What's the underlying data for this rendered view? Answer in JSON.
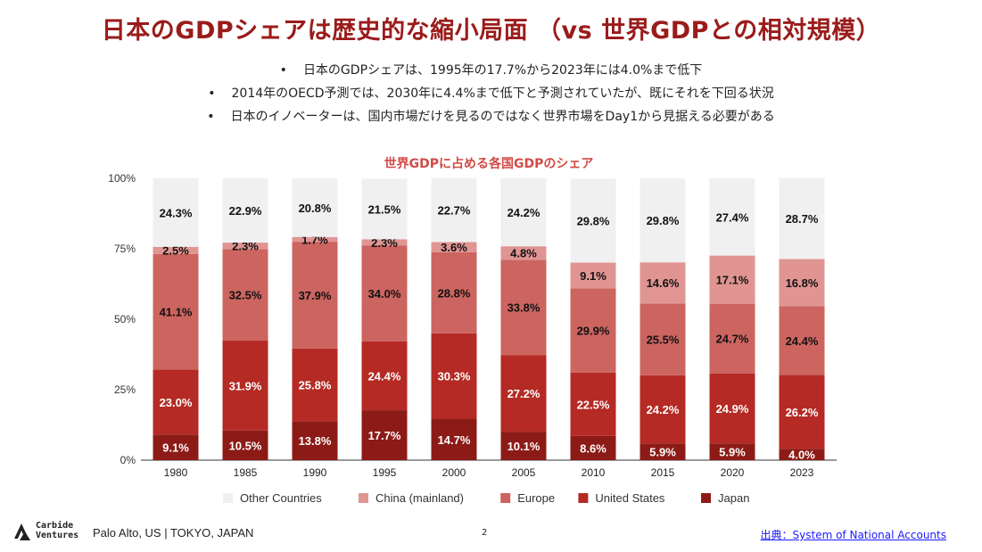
{
  "slide": {
    "title": "日本のGDPシェアは歴史的な縮小局面 （vs 世界GDPとの相対規模）",
    "bullets": [
      "日本のGDPシェアは、1995年の17.7%から2023年には4.0%まで低下",
      "2014年のOECD予測では、2030年に4.4%まで低下と予測されていたが、既にそれを下回る状況",
      "日本のイノベーターは、国内市場だけを見るのではなく世界市場をDay1から見据える必要がある"
    ],
    "bullet_marker": "•"
  },
  "footer": {
    "logo_line1": "Carbide",
    "logo_line2": "Ventures",
    "location": "Palo Alto, US | TOKYO, JAPAN",
    "page_number": "2",
    "source": "出典：System of National Accounts"
  },
  "chart_data": {
    "type": "bar",
    "stacked": true,
    "title": "世界GDPに占める各国GDPのシェア",
    "categories": [
      "1980",
      "1985",
      "1990",
      "1995",
      "2000",
      "2005",
      "2010",
      "2015",
      "2020",
      "2023"
    ],
    "yticks": [
      "0%",
      "25%",
      "50%",
      "75%",
      "100%"
    ],
    "ylim": [
      0,
      100
    ],
    "grid": false,
    "legend_position": "bottom",
    "series": [
      {
        "name": "Japan",
        "color": "#8c1b17",
        "label_color": "#ffffff",
        "values": [
          9.1,
          10.5,
          13.8,
          17.7,
          14.7,
          10.1,
          8.6,
          5.9,
          5.9,
          4.0
        ]
      },
      {
        "name": "United States",
        "color": "#b52a24",
        "label_color": "#ffffff",
        "values": [
          23.0,
          31.9,
          25.8,
          24.4,
          30.3,
          27.2,
          22.5,
          24.2,
          24.9,
          26.2
        ]
      },
      {
        "name": "Europe",
        "color": "#cc6460",
        "label_color": "#111111",
        "values": [
          41.1,
          32.5,
          37.9,
          34.0,
          28.8,
          33.8,
          29.9,
          25.5,
          24.7,
          24.4
        ]
      },
      {
        "name": "China (mainland)",
        "color": "#e09593",
        "label_color": "#111111",
        "values": [
          2.5,
          2.3,
          1.7,
          2.3,
          3.6,
          4.8,
          9.1,
          14.6,
          17.1,
          16.8
        ]
      },
      {
        "name": "Other Countries",
        "color": "#f0f0f0",
        "label_color": "#111111",
        "values": [
          24.3,
          22.9,
          20.8,
          21.5,
          22.7,
          24.2,
          29.8,
          29.8,
          27.4,
          28.7
        ]
      }
    ],
    "legend_order": [
      "Other Countries",
      "China (mainland)",
      "Europe",
      "United States",
      "Japan"
    ]
  }
}
